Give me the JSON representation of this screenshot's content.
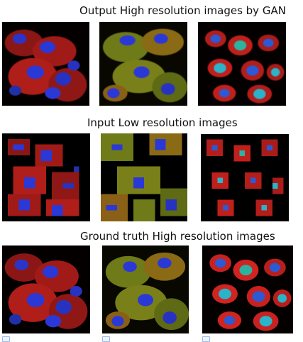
{
  "sections": [
    {
      "title": "Output High resolution images by GAN",
      "images": [
        {
          "name": "gan-output-image-1"
        },
        {
          "name": "gan-output-image-2"
        },
        {
          "name": "gan-output-image-3"
        }
      ]
    },
    {
      "title": "Input Low resolution images",
      "images": [
        {
          "name": "low-res-input-image-1"
        },
        {
          "name": "low-res-input-image-2"
        },
        {
          "name": "low-res-input-image-3"
        }
      ]
    },
    {
      "title": "Ground truth High resolution images",
      "images": [
        {
          "name": "ground-truth-image-1"
        },
        {
          "name": "ground-truth-image-2"
        },
        {
          "name": "ground-truth-image-3"
        }
      ]
    }
  ],
  "colors": {
    "cytoplasm_red": "#c0201c",
    "cytoplasm_green": "#6f7a18",
    "nucleus_blue": "#2a38d6",
    "nucleus_cyan": "#2bb3c9",
    "background": "#000000"
  }
}
